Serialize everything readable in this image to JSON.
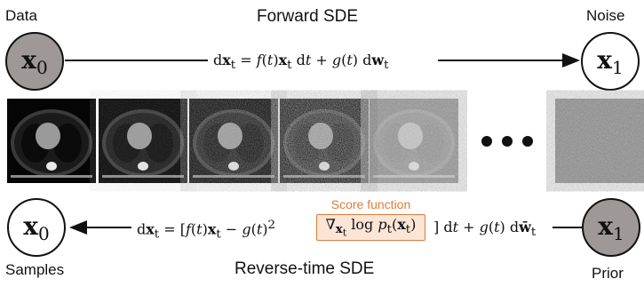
{
  "labels": {
    "data": "Data",
    "noise": "Noise",
    "samples": "Samples",
    "prior": "Prior",
    "forward_title": "Forward SDE",
    "reverse_title": "Reverse-time SDE",
    "score_function": "Score function"
  },
  "nodes": {
    "x0_top": {
      "var": "x",
      "sub": "0"
    },
    "x1_top": {
      "var": "x",
      "sub": "1"
    },
    "x0_bottom": {
      "var": "x",
      "sub": "0"
    },
    "x1_bottom": {
      "var": "x",
      "sub": "1"
    }
  },
  "colors": {
    "node_fill": "#9e9896",
    "score_border": "#e07b39",
    "score_fill": "#fbe5d6"
  },
  "images": {
    "count_before_ellipsis": 5,
    "ellipsis": "• • •",
    "description_kind": "CT slice noise progression"
  }
}
